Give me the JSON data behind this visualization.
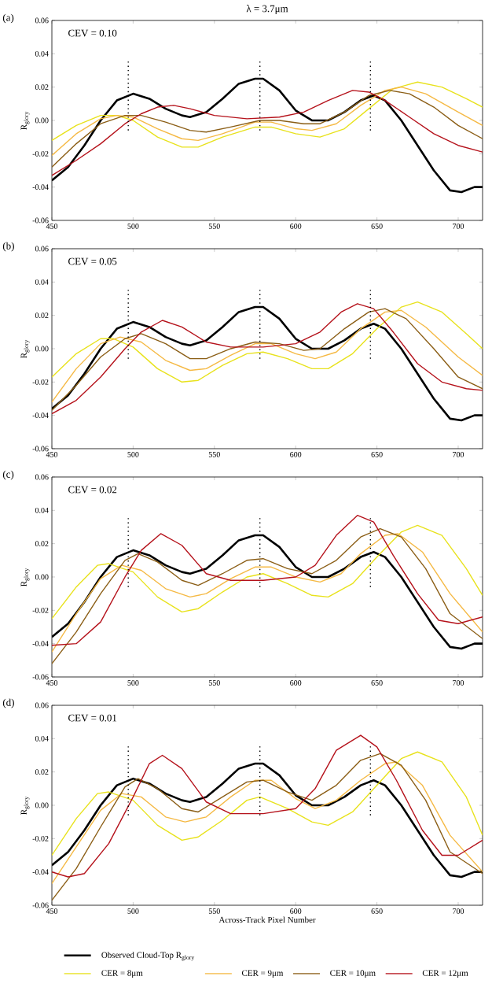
{
  "chart_data": [
    {
      "type": "line",
      "title": "λ = 3.7μm",
      "ylabel": "R$_{glory}$",
      "annotations": [
        "(a)",
        "CEV = 0.10"
      ],
      "xlim": [
        450,
        715
      ],
      "ylim": [
        -0.06,
        0.06
      ],
      "xticks": [
        450,
        500,
        550,
        600,
        650,
        700
      ],
      "yticks": [
        {
          "value": -0.06,
          "label": "-0.06"
        },
        {
          "value": -0.04,
          "label": "-0.04"
        },
        {
          "value": -0.02,
          "label": "-0.02"
        },
        {
          "value": 0,
          "label": "0.00"
        },
        {
          "value": 0.02,
          "label": "0.02"
        },
        {
          "value": 0.04,
          "label": "0.04"
        },
        {
          "value": 0.06,
          "label": "0.06"
        }
      ],
      "grid": false,
      "line_style": "solid",
      "ref_lines": [
        {
          "axis": "x",
          "value": 497,
          "line_style": "dotted"
        },
        {
          "axis": "x",
          "value": 578,
          "line_style": "dotted"
        },
        {
          "axis": "x",
          "value": 646,
          "line_style": "dotted"
        }
      ],
      "series": [
        {
          "color": "#000000",
          "x": [
            450,
            460,
            470,
            480,
            490,
            500,
            510,
            520,
            530,
            535,
            545,
            555,
            565,
            575,
            580,
            590,
            600,
            610,
            620,
            630,
            640,
            648,
            655,
            665,
            675,
            685,
            695,
            702,
            710,
            715
          ],
          "values": [
            -0.036,
            -0.028,
            -0.015,
            0.0,
            0.012,
            0.016,
            0.013,
            0.007,
            0.003,
            0.002,
            0.005,
            0.013,
            0.022,
            0.025,
            0.025,
            0.018,
            0.006,
            0.0,
            0.0,
            0.005,
            0.012,
            0.015,
            0.012,
            0.0,
            -0.015,
            -0.03,
            -0.042,
            -0.043,
            -0.04,
            -0.04
          ]
        },
        {
          "color": "#e8e21c",
          "x": [
            450,
            465,
            480,
            490,
            500,
            515,
            530,
            540,
            555,
            575,
            585,
            600,
            615,
            630,
            645,
            660,
            675,
            690,
            705,
            715
          ],
          "values": [
            -0.012,
            -0.003,
            0.003,
            0.003,
            0.0,
            -0.01,
            -0.016,
            -0.016,
            -0.01,
            -0.004,
            -0.004,
            -0.008,
            -0.01,
            -0.005,
            0.007,
            0.019,
            0.023,
            0.02,
            0.013,
            0.008
          ]
        },
        {
          "color": "#f5b944",
          "x": [
            450,
            465,
            480,
            490,
            500,
            515,
            530,
            540,
            555,
            575,
            585,
            600,
            610,
            625,
            640,
            655,
            665,
            680,
            700,
            715
          ],
          "values": [
            -0.021,
            -0.008,
            0.001,
            0.003,
            0.002,
            -0.005,
            -0.011,
            -0.012,
            -0.008,
            -0.001,
            -0.001,
            -0.005,
            -0.006,
            -0.002,
            0.009,
            0.018,
            0.02,
            0.016,
            0.005,
            -0.003
          ]
        },
        {
          "color": "#8b5e16",
          "x": [
            450,
            465,
            480,
            495,
            505,
            520,
            535,
            545,
            560,
            578,
            590,
            605,
            615,
            630,
            645,
            658,
            670,
            685,
            700,
            715
          ],
          "values": [
            -0.028,
            -0.014,
            -0.002,
            0.003,
            0.003,
            -0.001,
            -0.006,
            -0.007,
            -0.004,
            0.0,
            0.0,
            -0.002,
            -0.002,
            0.005,
            0.015,
            0.018,
            0.016,
            0.008,
            -0.003,
            -0.011
          ]
        },
        {
          "color": "#b5121b",
          "x": [
            450,
            465,
            480,
            495,
            505,
            515,
            525,
            535,
            550,
            570,
            590,
            605,
            620,
            635,
            645,
            655,
            670,
            685,
            700,
            715
          ],
          "values": [
            -0.033,
            -0.024,
            -0.014,
            -0.002,
            0.004,
            0.008,
            0.009,
            0.007,
            0.003,
            0.001,
            0.002,
            0.005,
            0.012,
            0.018,
            0.017,
            0.012,
            0.002,
            -0.008,
            -0.015,
            -0.019
          ]
        }
      ]
    },
    {
      "type": "line",
      "ylabel": "R$_{glory}$",
      "annotations": [
        "(b)",
        "CEV = 0.05"
      ],
      "xlim": [
        450,
        715
      ],
      "ylim": [
        -0.06,
        0.06
      ],
      "xticks": [
        450,
        500,
        550,
        600,
        650,
        700
      ],
      "yticks": [
        {
          "value": -0.06,
          "label": "-0.06"
        },
        {
          "value": -0.04,
          "label": "-0.04"
        },
        {
          "value": -0.02,
          "label": "-0.02"
        },
        {
          "value": 0,
          "label": "0.00"
        },
        {
          "value": 0.02,
          "label": "0.02"
        },
        {
          "value": 0.04,
          "label": "0.04"
        },
        {
          "value": 0.06,
          "label": "0.06"
        }
      ],
      "grid": false,
      "line_style": "solid",
      "ref_lines": [
        {
          "axis": "x",
          "value": 497,
          "line_style": "dotted"
        },
        {
          "axis": "x",
          "value": 578,
          "line_style": "dotted"
        },
        {
          "axis": "x",
          "value": 646,
          "line_style": "dotted"
        }
      ],
      "series": [
        {
          "color": "#000000",
          "x": [
            450,
            460,
            470,
            480,
            490,
            500,
            510,
            520,
            530,
            535,
            545,
            555,
            565,
            575,
            580,
            590,
            600,
            610,
            620,
            630,
            640,
            648,
            655,
            665,
            675,
            685,
            695,
            702,
            710,
            715
          ],
          "values": [
            -0.036,
            -0.028,
            -0.015,
            0.0,
            0.012,
            0.016,
            0.013,
            0.007,
            0.003,
            0.002,
            0.005,
            0.013,
            0.022,
            0.025,
            0.025,
            0.018,
            0.006,
            0.0,
            0.0,
            0.005,
            0.012,
            0.015,
            0.012,
            0.0,
            -0.015,
            -0.03,
            -0.042,
            -0.043,
            -0.04,
            -0.04
          ]
        },
        {
          "color": "#e8e21c",
          "x": [
            450,
            465,
            480,
            488,
            500,
            515,
            530,
            540,
            555,
            570,
            580,
            595,
            610,
            620,
            635,
            650,
            665,
            675,
            690,
            705,
            715
          ],
          "values": [
            -0.017,
            -0.003,
            0.006,
            0.006,
            0.001,
            -0.012,
            -0.02,
            -0.019,
            -0.01,
            -0.003,
            -0.002,
            -0.006,
            -0.012,
            -0.012,
            -0.003,
            0.012,
            0.025,
            0.028,
            0.022,
            0.009,
            0.0
          ]
        },
        {
          "color": "#f5b944",
          "x": [
            450,
            465,
            480,
            492,
            505,
            520,
            535,
            545,
            560,
            575,
            585,
            600,
            612,
            625,
            640,
            655,
            665,
            680,
            700,
            715
          ],
          "values": [
            -0.032,
            -0.012,
            0.003,
            0.007,
            0.004,
            -0.007,
            -0.013,
            -0.012,
            -0.004,
            0.003,
            0.003,
            -0.003,
            -0.006,
            -0.002,
            0.012,
            0.022,
            0.023,
            0.013,
            -0.005,
            -0.016
          ]
        },
        {
          "color": "#8b5e16",
          "x": [
            450,
            465,
            480,
            495,
            505,
            520,
            535,
            545,
            560,
            575,
            590,
            605,
            615,
            630,
            645,
            655,
            668,
            685,
            700,
            715
          ],
          "values": [
            -0.037,
            -0.022,
            -0.005,
            0.006,
            0.009,
            0.003,
            -0.006,
            -0.006,
            0.0,
            0.004,
            0.003,
            -0.001,
            0.0,
            0.012,
            0.022,
            0.024,
            0.018,
            0.0,
            -0.017,
            -0.024
          ]
        },
        {
          "color": "#b5121b",
          "x": [
            450,
            465,
            480,
            495,
            505,
            518,
            530,
            545,
            560,
            580,
            600,
            615,
            628,
            638,
            648,
            660,
            675,
            690,
            705,
            715
          ],
          "values": [
            -0.039,
            -0.031,
            -0.017,
            0.0,
            0.01,
            0.017,
            0.013,
            0.004,
            0.001,
            0.001,
            0.003,
            0.01,
            0.022,
            0.027,
            0.024,
            0.01,
            -0.009,
            -0.02,
            -0.024,
            -0.025
          ]
        }
      ]
    },
    {
      "type": "line",
      "ylabel": "R$_{glory}$",
      "annotations": [
        "(c)",
        "CEV = 0.02"
      ],
      "xlim": [
        450,
        715
      ],
      "ylim": [
        -0.06,
        0.06
      ],
      "xticks": [
        450,
        500,
        550,
        600,
        650,
        700
      ],
      "yticks": [
        {
          "value": -0.06,
          "label": "-0.06"
        },
        {
          "value": -0.04,
          "label": "-0.04"
        },
        {
          "value": -0.02,
          "label": "-0.02"
        },
        {
          "value": 0,
          "label": "0.00"
        },
        {
          "value": 0.02,
          "label": "0.02"
        },
        {
          "value": 0.04,
          "label": "0.04"
        },
        {
          "value": 0.06,
          "label": "0.06"
        }
      ],
      "grid": false,
      "line_style": "solid",
      "ref_lines": [
        {
          "axis": "x",
          "value": 497,
          "line_style": "dotted"
        },
        {
          "axis": "x",
          "value": 578,
          "line_style": "dotted"
        },
        {
          "axis": "x",
          "value": 646,
          "line_style": "dotted"
        }
      ],
      "series": [
        {
          "color": "#000000",
          "x": [
            450,
            460,
            470,
            480,
            490,
            500,
            510,
            520,
            530,
            535,
            545,
            555,
            565,
            575,
            580,
            590,
            600,
            610,
            620,
            630,
            640,
            648,
            655,
            665,
            675,
            685,
            695,
            702,
            710,
            715
          ],
          "values": [
            -0.036,
            -0.028,
            -0.015,
            0.0,
            0.012,
            0.016,
            0.013,
            0.007,
            0.003,
            0.002,
            0.005,
            0.013,
            0.022,
            0.025,
            0.025,
            0.018,
            0.006,
            0.0,
            0.0,
            0.005,
            0.012,
            0.015,
            0.012,
            0.0,
            -0.015,
            -0.03,
            -0.042,
            -0.043,
            -0.04,
            -0.04
          ]
        },
        {
          "color": "#e8e21c",
          "x": [
            450,
            465,
            478,
            485,
            500,
            515,
            530,
            540,
            555,
            570,
            580,
            595,
            610,
            620,
            635,
            650,
            665,
            675,
            690,
            705,
            715
          ],
          "values": [
            -0.025,
            -0.006,
            0.007,
            0.008,
            0.003,
            -0.012,
            -0.021,
            -0.019,
            -0.009,
            0.0,
            0.002,
            -0.004,
            -0.011,
            -0.012,
            -0.004,
            0.012,
            0.027,
            0.031,
            0.025,
            0.005,
            -0.011
          ]
        },
        {
          "color": "#f5b944",
          "x": [
            450,
            465,
            480,
            493,
            505,
            520,
            535,
            545,
            560,
            575,
            585,
            600,
            615,
            628,
            640,
            655,
            663,
            678,
            695,
            715
          ],
          "values": [
            -0.045,
            -0.022,
            -0.001,
            0.007,
            0.004,
            -0.007,
            -0.012,
            -0.01,
            -0.001,
            0.006,
            0.006,
            0.0,
            -0.003,
            0.002,
            0.014,
            0.025,
            0.026,
            0.015,
            -0.01,
            -0.033
          ]
        },
        {
          "color": "#8b5e16",
          "x": [
            450,
            465,
            480,
            495,
            503,
            515,
            530,
            540,
            555,
            570,
            580,
            595,
            610,
            625,
            640,
            652,
            665,
            680,
            695,
            715
          ],
          "values": [
            -0.052,
            -0.033,
            -0.01,
            0.01,
            0.014,
            0.009,
            -0.002,
            -0.005,
            0.002,
            0.01,
            0.011,
            0.005,
            0.002,
            0.01,
            0.024,
            0.029,
            0.024,
            0.005,
            -0.022,
            -0.037
          ]
        },
        {
          "color": "#b5121b",
          "x": [
            450,
            465,
            480,
            495,
            505,
            517,
            530,
            545,
            560,
            580,
            600,
            612,
            625,
            638,
            648,
            660,
            675,
            688,
            700,
            715
          ],
          "values": [
            -0.041,
            -0.04,
            -0.027,
            0.0,
            0.016,
            0.026,
            0.019,
            0.002,
            -0.002,
            -0.002,
            0.0,
            0.007,
            0.025,
            0.037,
            0.033,
            0.013,
            -0.01,
            -0.026,
            -0.028,
            -0.024
          ]
        }
      ]
    },
    {
      "type": "line",
      "ylabel": "R$_{glory}$",
      "xlabel": "Across-Track Pixel Number",
      "annotations": [
        "(d)",
        "CEV = 0.01"
      ],
      "xlim": [
        450,
        715
      ],
      "ylim": [
        -0.06,
        0.06
      ],
      "xticks": [
        450,
        500,
        550,
        600,
        650,
        700
      ],
      "yticks": [
        {
          "value": -0.06,
          "label": "-0.06"
        },
        {
          "value": -0.04,
          "label": "-0.04"
        },
        {
          "value": -0.02,
          "label": "-0.02"
        },
        {
          "value": 0,
          "label": "0.00"
        },
        {
          "value": 0.02,
          "label": "0.02"
        },
        {
          "value": 0.04,
          "label": "0.04"
        },
        {
          "value": 0.06,
          "label": "0.06"
        }
      ],
      "grid": false,
      "line_style": "solid",
      "legend": "bottom",
      "ref_lines": [
        {
          "axis": "x",
          "value": 497,
          "line_style": "dotted"
        },
        {
          "axis": "x",
          "value": 578,
          "line_style": "dotted"
        },
        {
          "axis": "x",
          "value": 646,
          "line_style": "dotted"
        }
      ],
      "series": [
        {
          "name": "Observed Cloud-Top R$_{glory}$",
          "color": "#000000",
          "x": [
            450,
            460,
            470,
            480,
            490,
            500,
            510,
            520,
            530,
            535,
            545,
            555,
            565,
            575,
            580,
            590,
            600,
            610,
            620,
            630,
            640,
            648,
            655,
            665,
            675,
            685,
            695,
            702,
            710,
            715
          ],
          "values": [
            -0.036,
            -0.028,
            -0.015,
            0.0,
            0.012,
            0.016,
            0.013,
            0.007,
            0.003,
            0.002,
            0.005,
            0.013,
            0.022,
            0.025,
            0.025,
            0.018,
            0.006,
            0.0,
            0.0,
            0.005,
            0.012,
            0.015,
            0.012,
            0.0,
            -0.015,
            -0.03,
            -0.042,
            -0.043,
            -0.04,
            -0.04
          ]
        },
        {
          "name": "CER = 8μm",
          "color": "#e8e21c",
          "x": [
            450,
            465,
            478,
            485,
            500,
            515,
            530,
            540,
            555,
            570,
            578,
            595,
            610,
            620,
            635,
            650,
            665,
            675,
            690,
            705,
            715
          ],
          "values": [
            -0.03,
            -0.008,
            0.007,
            0.008,
            0.003,
            -0.012,
            -0.021,
            -0.019,
            -0.009,
            0.003,
            0.005,
            -0.002,
            -0.01,
            -0.012,
            -0.004,
            0.012,
            0.028,
            0.032,
            0.026,
            0.005,
            -0.018
          ]
        },
        {
          "name": "CER = 9μm",
          "color": "#f5b944",
          "x": [
            450,
            465,
            480,
            493,
            505,
            520,
            532,
            545,
            560,
            575,
            585,
            600,
            612,
            625,
            640,
            655,
            662,
            678,
            695,
            715
          ],
          "values": [
            -0.047,
            -0.025,
            -0.003,
            0.007,
            0.005,
            -0.007,
            -0.01,
            -0.007,
            0.005,
            0.015,
            0.015,
            0.004,
            -0.002,
            0.003,
            0.015,
            0.025,
            0.026,
            0.012,
            -0.018,
            -0.04
          ]
        },
        {
          "name": "CER = 10μm",
          "color": "#8b5e16",
          "x": [
            450,
            465,
            480,
            495,
            503,
            515,
            530,
            540,
            555,
            570,
            580,
            595,
            610,
            625,
            640,
            652,
            665,
            680,
            695,
            715
          ],
          "values": [
            -0.057,
            -0.038,
            -0.013,
            0.011,
            0.016,
            0.01,
            -0.002,
            -0.004,
            0.005,
            0.014,
            0.015,
            0.008,
            0.003,
            0.012,
            0.027,
            0.031,
            0.024,
            0.003,
            -0.028,
            -0.041
          ]
        },
        {
          "name": "CER = 12μm",
          "color": "#b5121b",
          "x": [
            450,
            460,
            470,
            485,
            500,
            510,
            518,
            530,
            545,
            560,
            580,
            600,
            612,
            625,
            640,
            650,
            662,
            678,
            690,
            700,
            715
          ],
          "values": [
            -0.04,
            -0.043,
            -0.041,
            -0.023,
            0.005,
            0.025,
            0.03,
            0.022,
            0.002,
            -0.005,
            -0.005,
            -0.002,
            0.01,
            0.033,
            0.042,
            0.035,
            0.015,
            -0.015,
            -0.03,
            -0.03,
            -0.021
          ]
        }
      ]
    }
  ]
}
